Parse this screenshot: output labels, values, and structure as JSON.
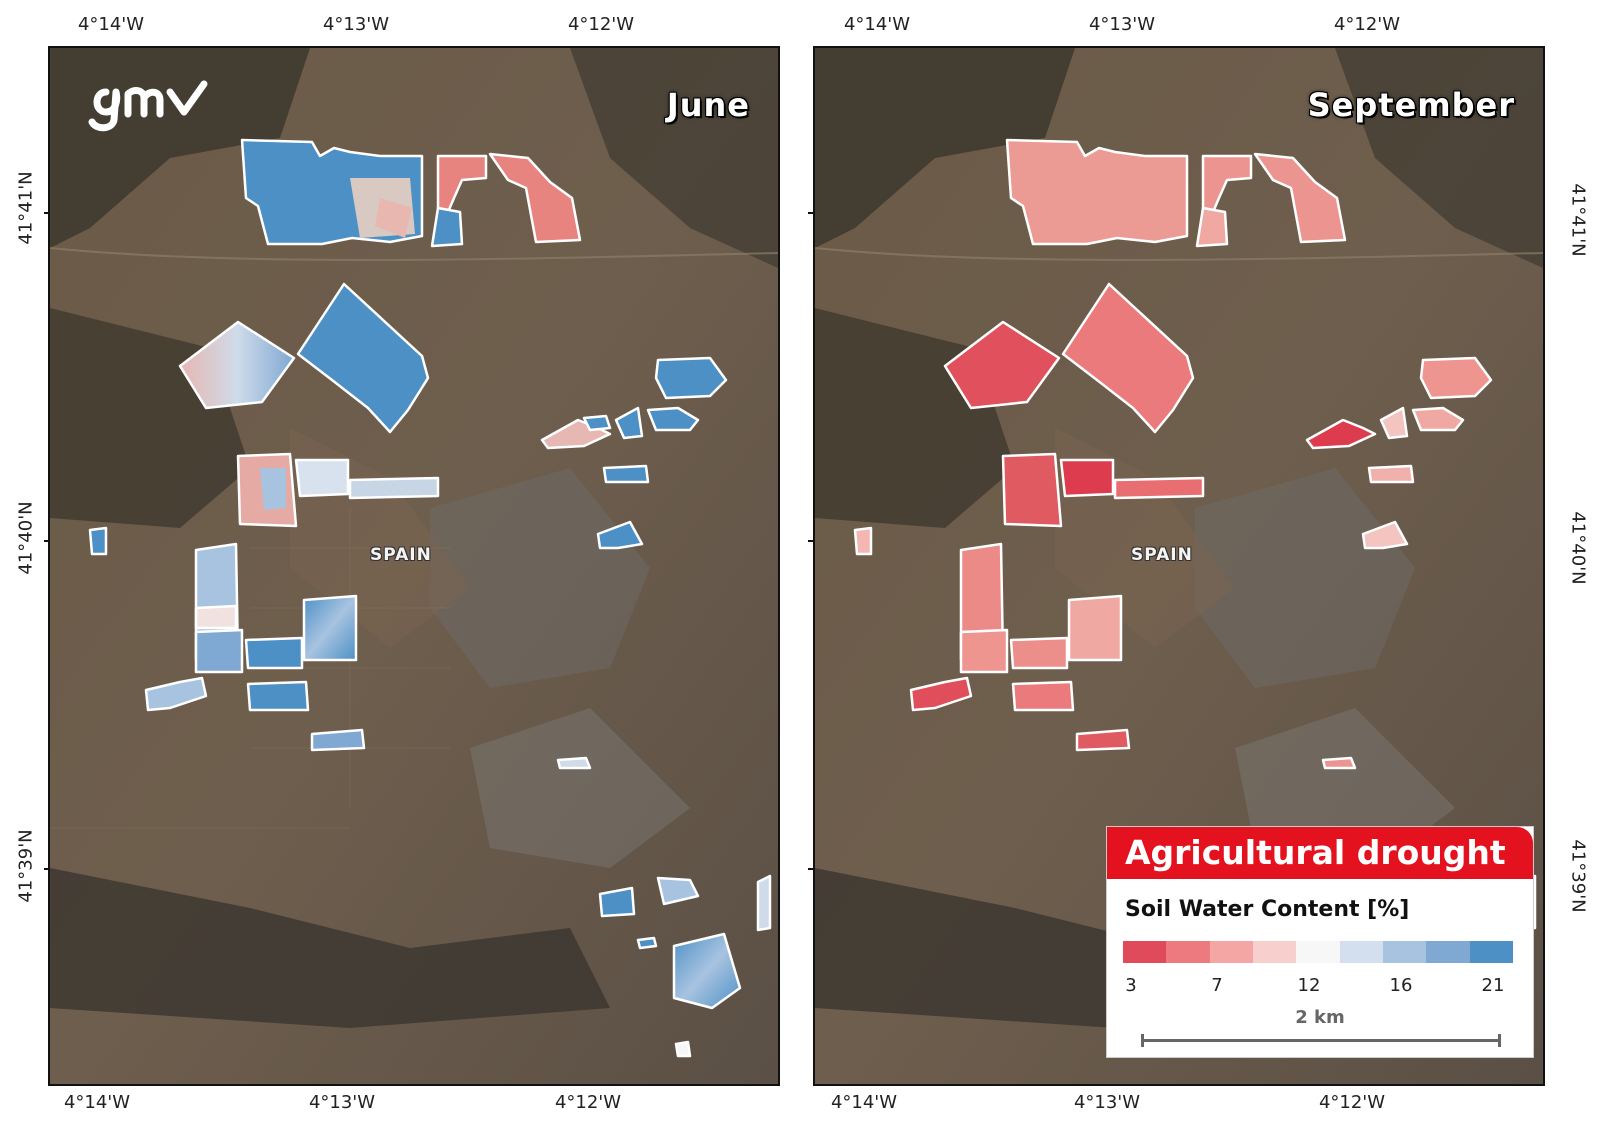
{
  "coords": {
    "lon_top": [
      "4°14'W",
      "4°13'W",
      "4°12'W"
    ],
    "lon_bottom": [
      "4°14'W",
      "4°13'W",
      "4°12'W"
    ],
    "lat": [
      "41°41'N",
      "41°40'N",
      "41°39'N"
    ]
  },
  "panels": [
    {
      "month": "June",
      "spain_label": "SPAIN",
      "logo": "gmv"
    },
    {
      "month": "September",
      "spain_label": "SPAIN"
    }
  ],
  "legend": {
    "title": "Agricultural drought",
    "subtitle": "Soil Water Content [%]",
    "ramp_colors": [
      "#e04b5c",
      "#ec7a7e",
      "#f3a6a3",
      "#f7cfcd",
      "#f7f7f7",
      "#d3dfee",
      "#a8c3e0",
      "#7fa8d3",
      "#4d90c6"
    ],
    "ramp_labels": [
      "3",
      "7",
      "12",
      "16",
      "21"
    ],
    "scale_label": "2 km"
  },
  "colors": {
    "accent": "#e04b5c",
    "wet": "#4d90c6",
    "dry": "#e8847f",
    "frame": "#111111"
  }
}
